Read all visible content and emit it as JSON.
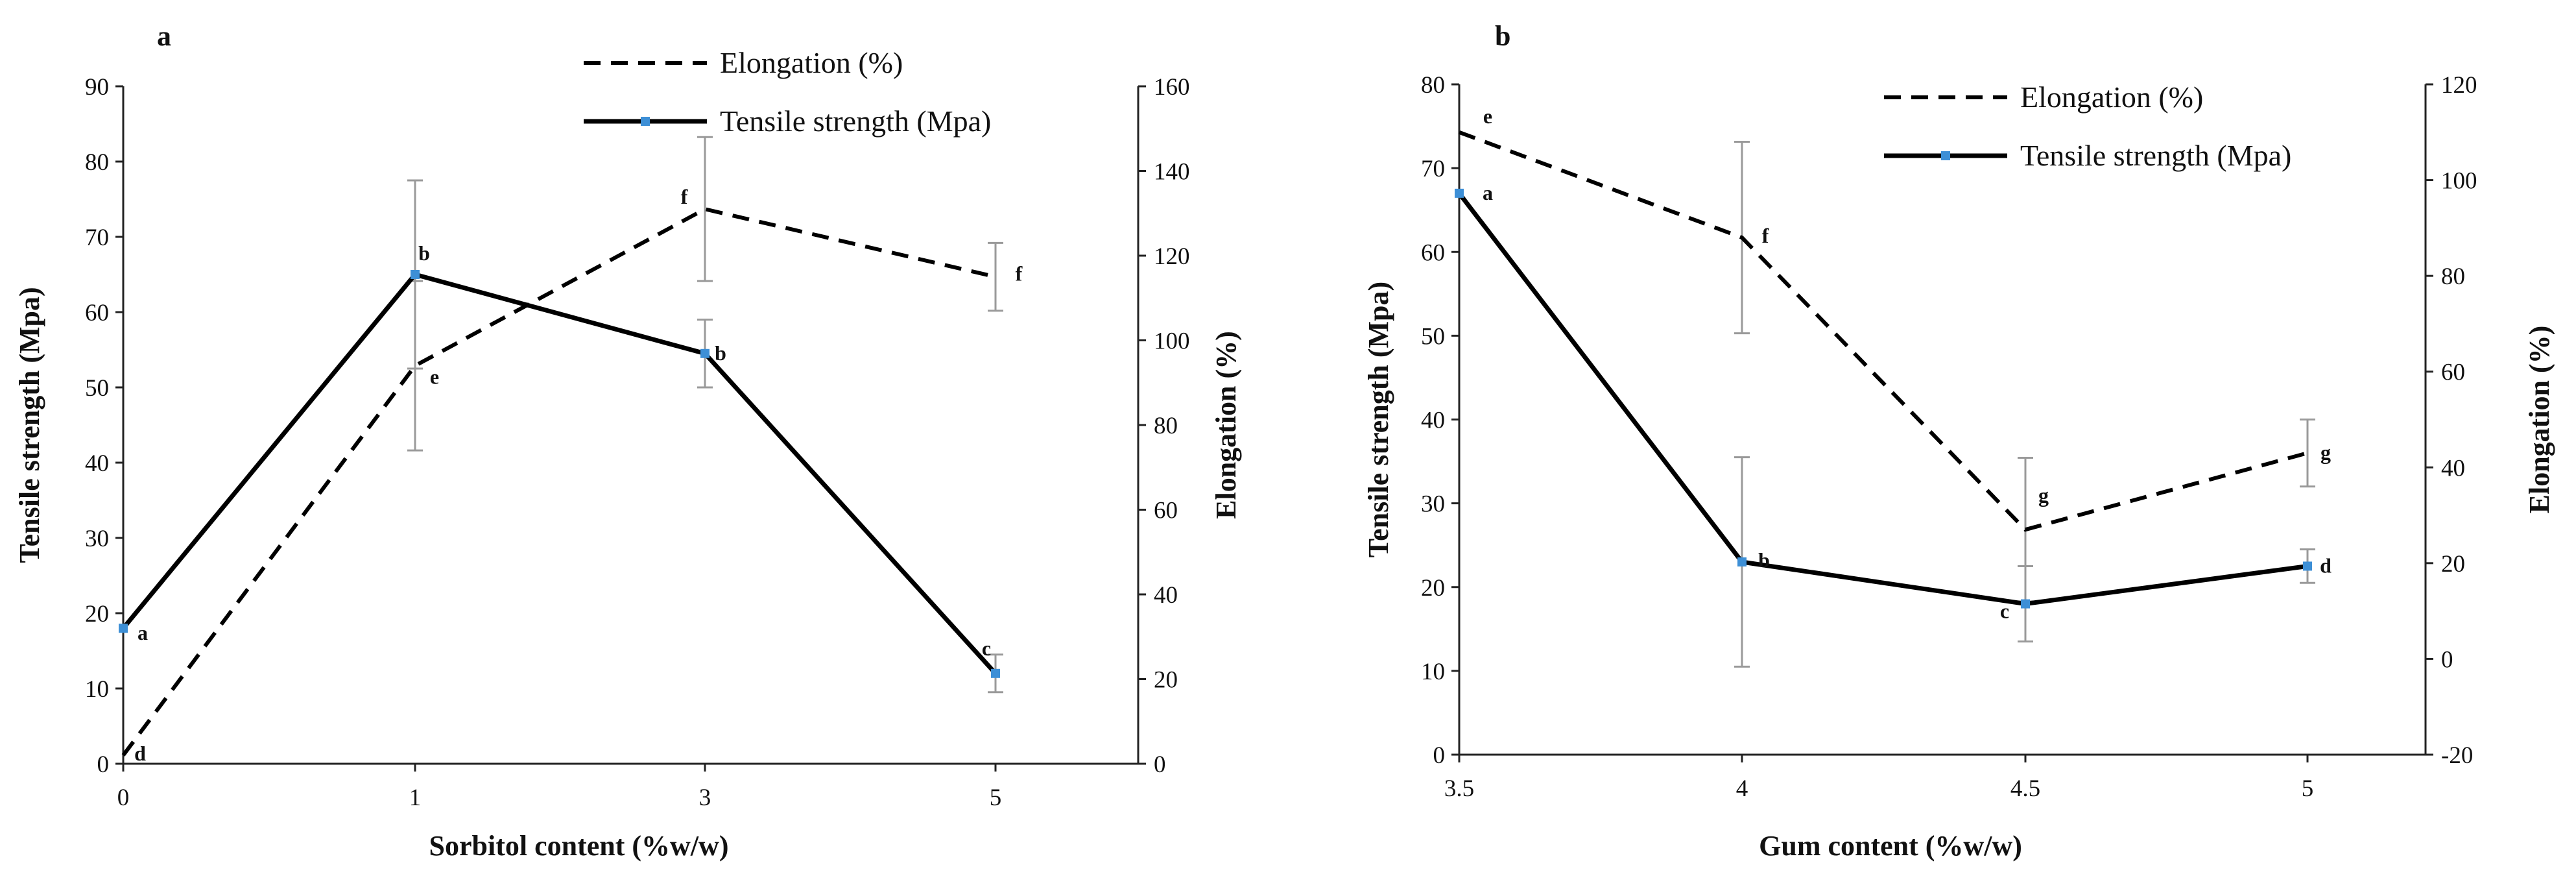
{
  "colors": {
    "line": "#000000",
    "marker": "#3d8fd6",
    "error_bar": "#9a9a9a"
  },
  "chart_data": [
    {
      "panel": "a",
      "type": "line",
      "xlabel": "Sorbitol content (%w/w)",
      "ylabel_left": "Tensile strength (Mpa)",
      "ylabel_right": "Elongation (%)",
      "categories": [
        "0",
        "1",
        "3",
        "5"
      ],
      "ylim_left": [
        0,
        90
      ],
      "yticks_left": [
        "0",
        "10",
        "20",
        "30",
        "40",
        "50",
        "60",
        "70",
        "80",
        "90"
      ],
      "ylim_right": [
        0,
        160
      ],
      "yticks_right": [
        "0",
        "20",
        "40",
        "60",
        "80",
        "100",
        "120",
        "140",
        "160"
      ],
      "legend": [
        "Elongation (%)",
        "Tensile strength (Mpa)"
      ],
      "series": [
        {
          "name": "Elongation (%)",
          "axis": "right",
          "style": "dashed",
          "values": [
            2,
            94,
            131,
            115
          ],
          "errors": [
            0,
            20,
            17,
            8
          ],
          "labels": [
            "d",
            "e",
            "f",
            "f"
          ]
        },
        {
          "name": "Tensile strength (Mpa)",
          "axis": "left",
          "style": "solid",
          "values": [
            18,
            65,
            54.5,
            12
          ],
          "errors": [
            0,
            12.5,
            4.5,
            2.5
          ],
          "labels": [
            "a",
            "b",
            "b",
            "c"
          ]
        }
      ]
    },
    {
      "panel": "b",
      "type": "line",
      "xlabel": "Gum content (%w/w)",
      "ylabel_left": "Tensile strength (Mpa)",
      "ylabel_right": "Elongation (%)",
      "categories": [
        "3.5",
        "4",
        "4.5",
        "5"
      ],
      "ylim_left": [
        0,
        80
      ],
      "yticks_left": [
        "0",
        "10",
        "20",
        "30",
        "40",
        "50",
        "60",
        "70",
        "80"
      ],
      "ylim_right": [
        -20,
        120
      ],
      "yticks_right": [
        "-20",
        "0",
        "20",
        "40",
        "60",
        "80",
        "100",
        "120"
      ],
      "legend": [
        "Elongation (%)",
        "Tensile strength (Mpa)"
      ],
      "series": [
        {
          "name": "Elongation (%)",
          "axis": "right",
          "style": "dashed",
          "values": [
            110,
            88,
            27,
            43
          ],
          "errors": [
            0,
            20,
            15,
            7
          ],
          "labels": [
            "e",
            "f",
            "g",
            "g"
          ]
        },
        {
          "name": "Tensile strength (Mpa)",
          "axis": "left",
          "style": "solid",
          "values": [
            67,
            23,
            18,
            22.5
          ],
          "errors": [
            0,
            12.5,
            4.5,
            2
          ],
          "labels": [
            "a",
            "b",
            "c",
            "d"
          ]
        }
      ]
    }
  ]
}
